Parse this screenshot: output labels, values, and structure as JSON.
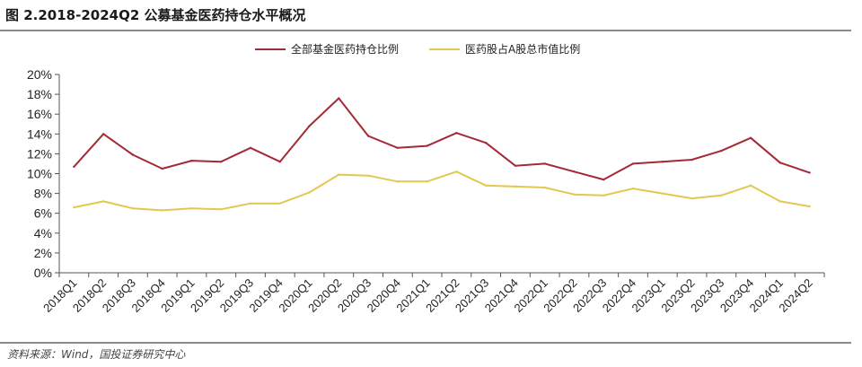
{
  "figure": {
    "title": "图 2.2018-2024Q2 公募基金医药持仓水平概况",
    "source": "资料来源：Wind，国投证券研究中心"
  },
  "colors": {
    "series1": "#a52a35",
    "series2": "#e2c84f",
    "axis": "#555555",
    "rule": "#8a8a8a"
  },
  "chart_data": {
    "type": "line",
    "categories": [
      "2018Q1",
      "2018Q2",
      "2018Q3",
      "2018Q4",
      "2019Q1",
      "2019Q2",
      "2019Q3",
      "2019Q4",
      "2020Q1",
      "2020Q2",
      "2020Q3",
      "2020Q4",
      "2021Q1",
      "2021Q2",
      "2021Q3",
      "2021Q4",
      "2022Q1",
      "2022Q2",
      "2022Q3",
      "2022Q4",
      "2023Q1",
      "2023Q2",
      "2023Q3",
      "2023Q4",
      "2024Q1",
      "2024Q2"
    ],
    "series": [
      {
        "name": "全部基金医药持仓比例",
        "values": [
          10.7,
          14.0,
          11.9,
          10.5,
          11.3,
          11.2,
          12.6,
          11.2,
          14.8,
          17.6,
          13.8,
          12.6,
          12.8,
          14.1,
          13.1,
          10.8,
          11.0,
          10.2,
          9.4,
          11.0,
          11.2,
          11.4,
          12.3,
          13.6,
          11.1,
          10.1
        ]
      },
      {
        "name": "医药股占A股总市值比例",
        "values": [
          6.6,
          7.2,
          6.5,
          6.3,
          6.5,
          6.4,
          7.0,
          7.0,
          8.1,
          9.9,
          9.8,
          9.2,
          9.2,
          10.2,
          8.8,
          8.7,
          8.6,
          7.9,
          7.8,
          8.5,
          8.0,
          7.5,
          7.8,
          8.8,
          7.2,
          6.7
        ]
      }
    ],
    "y_ticks": [
      "0%",
      "2%",
      "4%",
      "6%",
      "8%",
      "10%",
      "12%",
      "14%",
      "16%",
      "18%",
      "20%"
    ],
    "ylim": [
      0,
      20
    ],
    "grid": false,
    "legend": "top-center"
  }
}
